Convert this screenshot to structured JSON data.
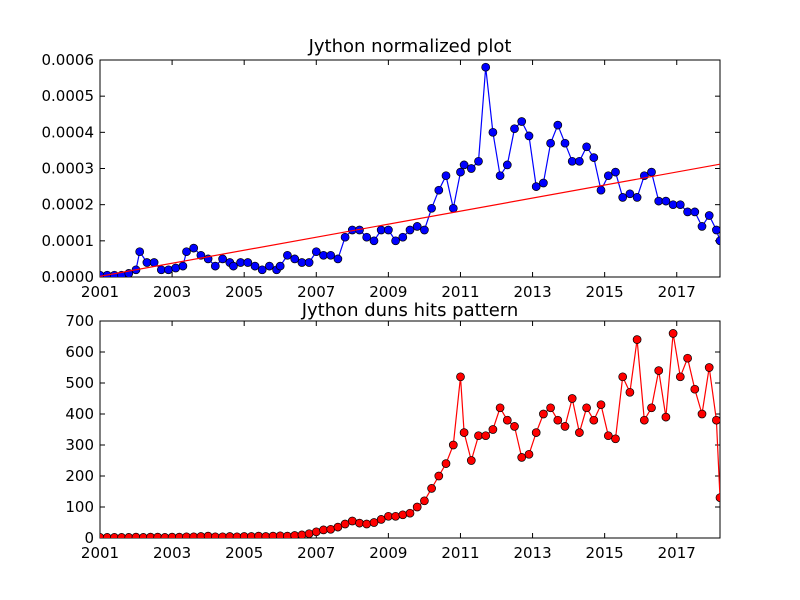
{
  "chart_data": [
    {
      "type": "line",
      "title": "Jython normalized plot",
      "xlabel": "",
      "ylabel": "",
      "xlim": [
        2001.0,
        2018.2
      ],
      "ylim": [
        0,
        0.0006
      ],
      "grid": false,
      "x_ticks": [
        "2001",
        "2003",
        "2005",
        "2007",
        "2009",
        "2011",
        "2013",
        "2015",
        "2017"
      ],
      "y_ticks": [
        "0.0000",
        "0.0001",
        "0.0002",
        "0.0003",
        "0.0004",
        "0.0005",
        "0.0006"
      ],
      "colors": {
        "series": "#0000ff",
        "trend": "#ff0000"
      },
      "series": [
        {
          "style": "line-marker",
          "x": [
            2001.0,
            2001.2,
            2001.4,
            2001.6,
            2001.8,
            2002.0,
            2002.1,
            2002.3,
            2002.5,
            2002.7,
            2002.9,
            2003.1,
            2003.3,
            2003.4,
            2003.6,
            2003.8,
            2004.0,
            2004.2,
            2004.4,
            2004.6,
            2004.7,
            2004.9,
            2005.1,
            2005.3,
            2005.5,
            2005.7,
            2005.9,
            2006.0,
            2006.2,
            2006.4,
            2006.6,
            2006.8,
            2007.0,
            2007.2,
            2007.4,
            2007.6,
            2007.8,
            2008.0,
            2008.2,
            2008.4,
            2008.6,
            2008.8,
            2009.0,
            2009.2,
            2009.4,
            2009.6,
            2009.8,
            2010.0,
            2010.2,
            2010.4,
            2010.6,
            2010.8,
            2011.0,
            2011.1,
            2011.3,
            2011.5,
            2011.7,
            2011.9,
            2012.1,
            2012.3,
            2012.5,
            2012.7,
            2012.9,
            2013.1,
            2013.3,
            2013.5,
            2013.7,
            2013.9,
            2014.1,
            2014.3,
            2014.5,
            2014.7,
            2014.9,
            2015.1,
            2015.3,
            2015.5,
            2015.7,
            2015.9,
            2016.1,
            2016.3,
            2016.5,
            2016.7,
            2016.9,
            2017.1,
            2017.3,
            2017.5,
            2017.7,
            2017.9,
            2018.1,
            2018.2
          ],
          "values": [
            5e-06,
            5e-06,
            5e-06,
            5e-06,
            1e-05,
            2e-05,
            7e-05,
            4e-05,
            4e-05,
            2e-05,
            2e-05,
            2.5e-05,
            3e-05,
            7e-05,
            8e-05,
            6e-05,
            5e-05,
            3e-05,
            5e-05,
            4e-05,
            3e-05,
            4e-05,
            4e-05,
            3e-05,
            2e-05,
            3e-05,
            2e-05,
            3e-05,
            6e-05,
            5e-05,
            4e-05,
            4e-05,
            7e-05,
            6e-05,
            6e-05,
            5e-05,
            0.00011,
            0.00013,
            0.00013,
            0.00011,
            0.0001,
            0.00013,
            0.00013,
            0.0001,
            0.00011,
            0.00013,
            0.00014,
            0.00013,
            0.00019,
            0.00024,
            0.00028,
            0.00019,
            0.00029,
            0.00031,
            0.0003,
            0.00032,
            0.00058,
            0.0004,
            0.00028,
            0.00031,
            0.00041,
            0.00043,
            0.00039,
            0.00025,
            0.00026,
            0.00037,
            0.00042,
            0.00037,
            0.00032,
            0.00032,
            0.00036,
            0.00033,
            0.00024,
            0.00028,
            0.00029,
            0.00022,
            0.00023,
            0.00022,
            0.00028,
            0.00029,
            0.00021,
            0.00021,
            0.0002,
            0.0002,
            0.00018,
            0.00018,
            0.00014,
            0.00017,
            0.00013,
            0.0001
          ]
        },
        {
          "style": "line",
          "x": [
            2001.0,
            2018.2
          ],
          "values": [
            2e-06,
            0.000312
          ]
        }
      ]
    },
    {
      "type": "line",
      "title": "Jython duns hits pattern",
      "xlabel": "",
      "ylabel": "",
      "xlim": [
        2001.0,
        2018.2
      ],
      "ylim": [
        0,
        700
      ],
      "grid": false,
      "x_ticks": [
        "2001",
        "2003",
        "2005",
        "2007",
        "2009",
        "2011",
        "2013",
        "2015",
        "2017"
      ],
      "y_ticks": [
        "0",
        "100",
        "200",
        "300",
        "400",
        "500",
        "600",
        "700"
      ],
      "colors": {
        "series": "#ff0000"
      },
      "series": [
        {
          "style": "line-marker",
          "x": [
            2001.0,
            2001.2,
            2001.4,
            2001.6,
            2001.8,
            2002.0,
            2002.2,
            2002.4,
            2002.6,
            2002.8,
            2003.0,
            2003.2,
            2003.4,
            2003.6,
            2003.8,
            2004.0,
            2004.2,
            2004.4,
            2004.6,
            2004.8,
            2005.0,
            2005.2,
            2005.4,
            2005.6,
            2005.8,
            2006.0,
            2006.2,
            2006.4,
            2006.6,
            2006.8,
            2007.0,
            2007.2,
            2007.4,
            2007.6,
            2007.8,
            2008.0,
            2008.2,
            2008.4,
            2008.6,
            2008.8,
            2009.0,
            2009.2,
            2009.4,
            2009.6,
            2009.8,
            2010.0,
            2010.2,
            2010.4,
            2010.6,
            2010.8,
            2011.0,
            2011.1,
            2011.3,
            2011.5,
            2011.7,
            2011.9,
            2012.1,
            2012.3,
            2012.5,
            2012.7,
            2012.9,
            2013.1,
            2013.3,
            2013.5,
            2013.7,
            2013.9,
            2014.1,
            2014.3,
            2014.5,
            2014.7,
            2014.9,
            2015.1,
            2015.3,
            2015.5,
            2015.7,
            2015.9,
            2016.1,
            2016.3,
            2016.5,
            2016.7,
            2016.9,
            2017.1,
            2017.3,
            2017.5,
            2017.7,
            2017.9,
            2018.1,
            2018.2
          ],
          "values": [
            2,
            2,
            2,
            2,
            2,
            3,
            2,
            3,
            3,
            2,
            3,
            3,
            4,
            4,
            5,
            6,
            4,
            4,
            5,
            4,
            5,
            5,
            6,
            5,
            6,
            7,
            6,
            8,
            10,
            14,
            20,
            26,
            28,
            35,
            45,
            55,
            48,
            45,
            50,
            60,
            70,
            70,
            75,
            80,
            100,
            120,
            160,
            200,
            240,
            300,
            520,
            340,
            250,
            330,
            330,
            350,
            420,
            380,
            360,
            260,
            270,
            340,
            400,
            420,
            380,
            360,
            450,
            340,
            420,
            380,
            430,
            330,
            320,
            520,
            470,
            640,
            380,
            420,
            540,
            390,
            660,
            520,
            580,
            480,
            400,
            550,
            380,
            130
          ]
        }
      ]
    }
  ]
}
